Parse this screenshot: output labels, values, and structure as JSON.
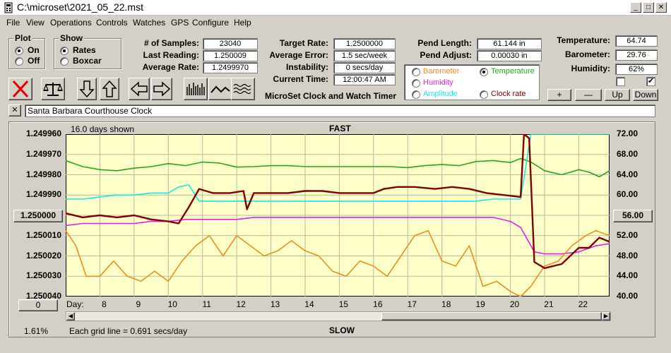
{
  "window": {
    "title": "C:\\microset\\2021_05_22.mst"
  },
  "menu": [
    "File",
    "View",
    "Operations",
    "Controls",
    "Watches",
    "GPS",
    "Configure",
    "Help"
  ],
  "plot_group": {
    "title": "Plot",
    "on": "On",
    "off": "Off",
    "selected": "On"
  },
  "show_group": {
    "title": "Show",
    "rates": "Rates",
    "boxcar": "Boxcar",
    "selected": "Rates"
  },
  "stats": {
    "samples_label": "# of Samples:",
    "samples": "23040",
    "last_label": "Last Reading:",
    "last": "1.250009",
    "avg_label": "Average Rate:",
    "avg": "1.2499970",
    "target_label": "Target Rate:",
    "target": "1.2500000",
    "avg_err_label": "Average Error:",
    "avg_err": "1.5 sec/week",
    "instab_label": "Instability:",
    "instab": "0 secs/day",
    "time_label": "Current Time:",
    "time": "12:00:47 AM",
    "pend_len_label": "Pend Length:",
    "pend_len": "61.144 in",
    "pend_adj_label": "Pend Adjust:",
    "pend_adj": "0.00030 in",
    "temp_label": "Temperature:",
    "temp": "64.74",
    "baro_label": "Barometer:",
    "baro": "29.76",
    "hum_label": "Humidity:",
    "hum": "62%"
  },
  "app_caption": "MicroSet Clock and Watch Timer",
  "legend": {
    "barometer": "Barometer",
    "temperature": "Temperature",
    "humidity": "Humidity",
    "amplitude": "Amplitude",
    "clock_rate": "Clock rate",
    "selected": "Temperature"
  },
  "colors": {
    "barometer": "#f08c1e",
    "temperature": "#1eaa1e",
    "humidity": "#e61ee6",
    "amplitude": "#1ee6e6",
    "clock_rate": "#800000",
    "chart_bg": "#ffffc8"
  },
  "axis_buttons": {
    "plus": "+",
    "minus": "—",
    "up": "Up",
    "down": "Down"
  },
  "checkboxes": [
    false,
    true
  ],
  "toolbar_icons": [
    "close-x-icon",
    "balance-scale-icon",
    "arrow-down-icon",
    "arrow-up-icon",
    "arrow-left-icon",
    "arrow-right-icon",
    "bar-chart-icon",
    "waveform-icon",
    "wavy-lines-icon"
  ],
  "clock_name": "Santa Barbara Courthouse Clock",
  "close_mark": "✕",
  "chart": {
    "days_shown": "16.0 days shown",
    "fast": "FAST",
    "slow": "SLOW",
    "grid_note": "Each grid line = 0.691 secs/day",
    "zoom_pct": "1.61%",
    "day_label": "Day:",
    "center_left": "1.250000",
    "center_right": "56.00",
    "left_scroll_value": "0",
    "left_ticks": [
      "1.249960",
      "1.249970",
      "1.249980",
      "1.249990",
      "1.250000",
      "1.250010",
      "1.250020",
      "1.250030",
      "1.250040"
    ],
    "right_ticks": [
      "72.00",
      "68.00",
      "64.00",
      "60.00",
      "56.00",
      "52.00",
      "48.00",
      "44.00",
      "40.00"
    ],
    "day_ticks": [
      "8",
      "9",
      "10",
      "11",
      "12",
      "13",
      "14",
      "15",
      "16",
      "17",
      "18",
      "19",
      "20",
      "21",
      "22"
    ]
  },
  "chart_data": {
    "type": "line",
    "title": "FAST",
    "xlabel": "Day:",
    "ylabel": "",
    "xlim": [
      7,
      22.9
    ],
    "ylim_left": [
      1.24996,
      1.25004
    ],
    "ylim_right": [
      40,
      72
    ],
    "series": [
      {
        "name": "Temperature",
        "axis": "right",
        "x": [
          7,
          7.5,
          8,
          8.5,
          9,
          9.5,
          10,
          10.5,
          11,
          11.5,
          12,
          12.5,
          13,
          13.5,
          14,
          14.5,
          15,
          15.5,
          16,
          16.5,
          17,
          17.5,
          18,
          18.5,
          19,
          19.5,
          20,
          20.3,
          20.6,
          21,
          21.5,
          22,
          22.3,
          22.6,
          22.9
        ],
        "y": [
          66.8,
          65.6,
          65.0,
          64.8,
          65.3,
          65.6,
          66.2,
          65.8,
          66.5,
          66.3,
          65.5,
          65.6,
          65.8,
          65.8,
          65.6,
          65.6,
          65.6,
          65.6,
          65.6,
          65.6,
          65.4,
          65.8,
          66.0,
          65.8,
          66.6,
          66.8,
          66.4,
          67.2,
          66.5,
          64.8,
          64.0,
          65.0,
          64.5,
          63.6,
          64.8
        ]
      },
      {
        "name": "Amplitude",
        "axis": "left",
        "x": [
          7,
          7.5,
          8,
          8.5,
          9,
          9.5,
          10,
          10.3,
          10.6,
          10.9,
          11.5,
          12,
          12.5,
          13,
          13.5,
          14,
          14.5,
          15,
          15.5,
          16,
          16.5,
          17,
          17.5,
          18,
          18.5,
          19,
          19.5,
          20,
          20.3,
          20.45,
          20.6,
          21.5,
          22,
          22.9
        ],
        "y": [
          1.249992,
          1.249992,
          1.249991,
          1.24999,
          1.24999,
          1.249989,
          1.249989,
          1.249986,
          1.249985,
          1.249993,
          1.249993,
          1.249993,
          1.249993,
          1.249993,
          1.249993,
          1.249993,
          1.249993,
          1.249993,
          1.249993,
          1.249993,
          1.249993,
          1.249993,
          1.249993,
          1.249993,
          1.249993,
          1.249993,
          1.249992,
          1.249992,
          1.249992,
          1.249976,
          1.24996,
          1.24996,
          1.24996,
          1.24996
        ]
      },
      {
        "name": "Humidity",
        "axis": "left",
        "x": [
          7,
          7.5,
          8,
          8.5,
          9,
          9.5,
          10,
          10.5,
          11,
          11.5,
          12,
          12.5,
          13,
          13.5,
          14,
          14.5,
          15,
          15.5,
          16,
          16.5,
          17,
          17.5,
          18,
          18.5,
          19,
          19.5,
          20,
          20.3,
          20.5,
          20.7,
          21,
          21.5,
          22,
          22.5,
          22.9
        ],
        "y": [
          1.250005,
          1.250004,
          1.250004,
          1.250004,
          1.250004,
          1.250003,
          1.250003,
          1.250002,
          1.250002,
          1.250002,
          1.250002,
          1.250001,
          1.250001,
          1.250001,
          1.250001,
          1.250001,
          1.250001,
          1.250001,
          1.250001,
          1.250001,
          1.250001,
          1.250001,
          1.250001,
          1.250001,
          1.250001,
          1.250001,
          1.250003,
          1.250006,
          1.250012,
          1.250018,
          1.250019,
          1.250019,
          1.250018,
          1.250015,
          1.250014
        ]
      },
      {
        "name": "Clock rate",
        "axis": "left",
        "x": [
          7,
          7.5,
          8,
          8.5,
          9,
          9.5,
          10,
          10.3,
          10.6,
          10.9,
          11.3,
          11.8,
          12.2,
          12.3,
          12.5,
          13,
          13.5,
          14,
          14.5,
          15,
          15.5,
          16,
          16.3,
          16.7,
          17.2,
          17.8,
          18.3,
          18.8,
          19.3,
          19.8,
          20.3,
          20.4,
          20.55,
          20.7,
          21,
          21.5,
          22,
          22.3,
          22.6,
          22.9
        ],
        "y": [
          1.249999,
          1.250001,
          1.25,
          1.250001,
          1.25,
          1.250002,
          1.250003,
          1.250004,
          1.249996,
          1.249987,
          1.249989,
          1.249989,
          1.249988,
          1.249997,
          1.249989,
          1.249989,
          1.249989,
          1.249988,
          1.249988,
          1.249989,
          1.249989,
          1.249989,
          1.249987,
          1.249986,
          1.249986,
          1.249987,
          1.249986,
          1.249987,
          1.249989,
          1.24999,
          1.249991,
          1.24996,
          1.249962,
          1.250023,
          1.250026,
          1.250024,
          1.250016,
          1.250016,
          1.250011,
          1.250013
        ]
      },
      {
        "name": "Barometer",
        "axis": "right",
        "x": [
          7,
          7.3,
          7.6,
          8,
          8.4,
          8.8,
          9.2,
          9.6,
          10,
          10.4,
          10.8,
          11.2,
          11.6,
          12,
          12.4,
          12.8,
          13.2,
          13.6,
          14,
          14.4,
          14.8,
          15.2,
          15.6,
          16,
          16.4,
          16.8,
          17.2,
          17.6,
          18,
          18.4,
          18.8,
          19.2,
          19.6,
          20,
          20.3,
          20.6,
          21,
          21.4,
          21.8,
          22.2,
          22.5,
          22.9
        ],
        "y": [
          53,
          50,
          44,
          44,
          47,
          44,
          43,
          45,
          43,
          47,
          50,
          52,
          48,
          52,
          50,
          48,
          49,
          51,
          49,
          48,
          45,
          44,
          47,
          46,
          44,
          48,
          52,
          53,
          47,
          46,
          50,
          42,
          43,
          41,
          40,
          42,
          46,
          47,
          50,
          52,
          53,
          52
        ]
      }
    ]
  }
}
